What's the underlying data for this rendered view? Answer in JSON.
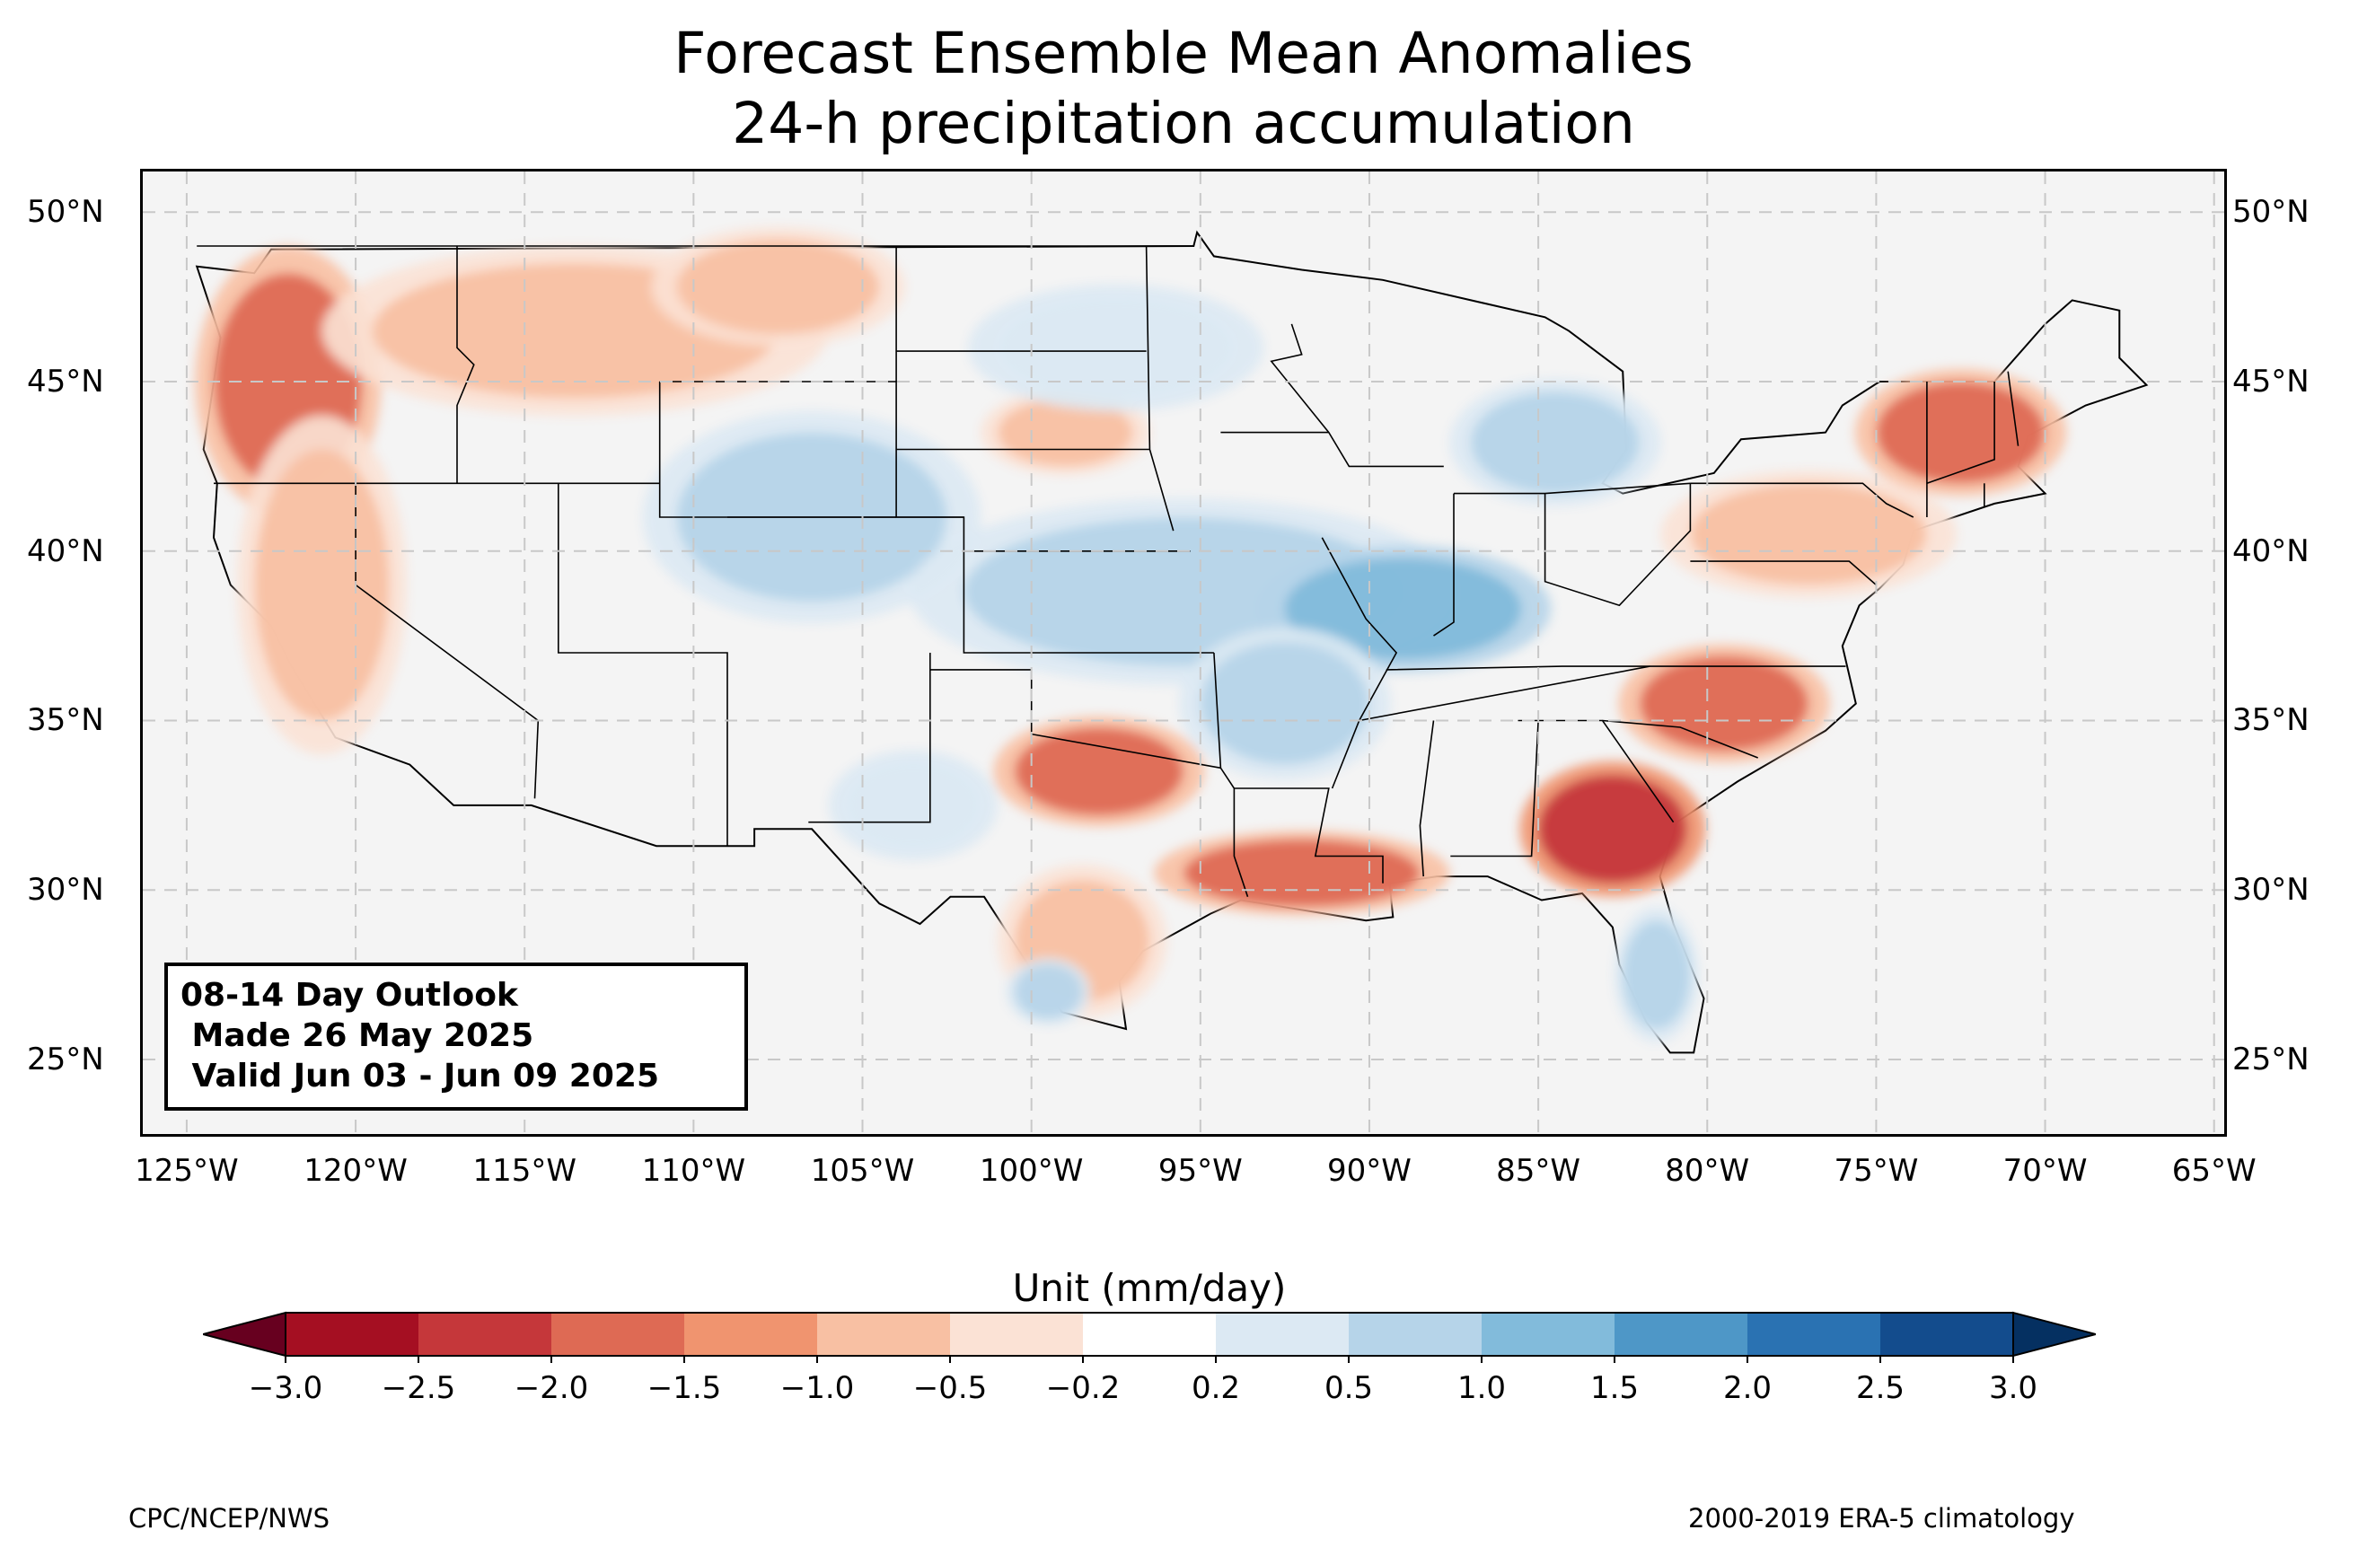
{
  "title": {
    "line1": "Forecast Ensemble Mean Anomalies",
    "line2": "24-h precipitation accumulation"
  },
  "map": {
    "extent": {
      "lon_min": -126.3,
      "lon_max": -64.7,
      "lat_min": 22.8,
      "lat_max": 51.2
    },
    "lat_ticks": [
      "50°N",
      "45°N",
      "40°N",
      "35°N",
      "30°N",
      "25°N"
    ],
    "lat_values": [
      50,
      45,
      40,
      35,
      30,
      25
    ],
    "lon_ticks": [
      "125°W",
      "120°W",
      "115°W",
      "110°W",
      "105°W",
      "100°W",
      "95°W",
      "90°W",
      "85°W",
      "80°W",
      "75°W",
      "70°W",
      "65°W"
    ],
    "lon_values": [
      -125,
      -120,
      -115,
      -110,
      -105,
      -100,
      -95,
      -90,
      -85,
      -80,
      -75,
      -70,
      -65
    ],
    "gridlines": "dashed",
    "background_color": "#f4f4f4",
    "anomaly_regions": [
      {
        "region": "Pacific Northwest",
        "center_lon": -122.0,
        "center_lat": 45.0,
        "value": -1.8,
        "rx_deg": 2.2,
        "ry_deg": 3.2
      },
      {
        "region": "Northern Rockies",
        "center_lon": -113.5,
        "center_lat": 46.5,
        "value": -1.0,
        "rx_deg": 6.0,
        "ry_deg": 2.0
      },
      {
        "region": "Eastern Montana",
        "center_lon": -107.5,
        "center_lat": 47.8,
        "value": -0.6,
        "rx_deg": 3.0,
        "ry_deg": 1.4
      },
      {
        "region": "California coast",
        "center_lon": -121.0,
        "center_lat": 39.0,
        "value": -0.6,
        "rx_deg": 2.0,
        "ry_deg": 4.0
      },
      {
        "region": "Nebraska",
        "center_lon": -99.0,
        "center_lat": 43.5,
        "value": -1.0,
        "rx_deg": 2.0,
        "ry_deg": 1.0
      },
      {
        "region": "Wyoming / Colorado",
        "center_lon": -106.5,
        "center_lat": 41.0,
        "value": 0.6,
        "rx_deg": 4.0,
        "ry_deg": 2.5
      },
      {
        "region": "Dakotas",
        "center_lon": -97.5,
        "center_lat": 46.0,
        "value": 0.4,
        "rx_deg": 3.5,
        "ry_deg": 1.5
      },
      {
        "region": "Kansas / Missouri",
        "center_lon": -95.5,
        "center_lat": 38.8,
        "value": 0.8,
        "rx_deg": 6.5,
        "ry_deg": 2.2
      },
      {
        "region": "Ohio Valley",
        "center_lon": -89.0,
        "center_lat": 38.3,
        "value": 1.2,
        "rx_deg": 3.5,
        "ry_deg": 1.5
      },
      {
        "region": "Michigan",
        "center_lon": -84.5,
        "center_lat": 43.2,
        "value": 0.6,
        "rx_deg": 2.5,
        "ry_deg": 1.5
      },
      {
        "region": "Arkansas",
        "center_lon": -92.5,
        "center_lat": 35.5,
        "value": 0.8,
        "rx_deg": 2.5,
        "ry_deg": 1.8
      },
      {
        "region": "Oklahoma",
        "center_lon": -98.0,
        "center_lat": 33.5,
        "value": -1.6,
        "rx_deg": 2.5,
        "ry_deg": 1.3
      },
      {
        "region": "Louisiana",
        "center_lon": -92.0,
        "center_lat": 30.5,
        "value": -1.8,
        "rx_deg": 3.5,
        "ry_deg": 1.0
      },
      {
        "region": "South Texas",
        "center_lon": -98.5,
        "center_lat": 28.5,
        "value": -1.0,
        "rx_deg": 2.0,
        "ry_deg": 1.8
      },
      {
        "region": "Georgia",
        "center_lon": -82.8,
        "center_lat": 31.8,
        "value": -2.1,
        "rx_deg": 2.2,
        "ry_deg": 1.6
      },
      {
        "region": "Carolinas",
        "center_lon": -79.5,
        "center_lat": 35.5,
        "value": -2.0,
        "rx_deg": 2.5,
        "ry_deg": 1.4
      },
      {
        "region": "New England",
        "center_lon": -72.5,
        "center_lat": 43.5,
        "value": -1.8,
        "rx_deg": 2.5,
        "ry_deg": 1.5
      },
      {
        "region": "Mid-Atlantic",
        "center_lon": -77.0,
        "center_lat": 40.5,
        "value": -1.0,
        "rx_deg": 3.5,
        "ry_deg": 1.5
      },
      {
        "region": "Florida",
        "center_lon": -81.5,
        "center_lat": 27.5,
        "value": 0.7,
        "rx_deg": 1.0,
        "ry_deg": 1.6
      },
      {
        "region": "West Texas",
        "center_lon": -103.5,
        "center_lat": 32.5,
        "value": 0.3,
        "rx_deg": 2.0,
        "ry_deg": 1.3
      },
      {
        "region": "South Texas coast",
        "center_lon": -99.5,
        "center_lat": 27.0,
        "value": 0.6,
        "rx_deg": 1.0,
        "ry_deg": 0.8
      }
    ]
  },
  "info_box": {
    "line1": "08-14 Day Outlook",
    "line2": " Made 26 May 2025",
    "line3": " Valid Jun 03 - Jun 09 2025"
  },
  "colorbar": {
    "label": "Unit (mm/day)",
    "boundaries": [
      -3.0,
      -2.5,
      -2.0,
      -1.5,
      -1.0,
      -0.5,
      -0.2,
      0.2,
      0.5,
      1.0,
      1.5,
      2.0,
      2.5,
      3.0
    ],
    "tick_labels": [
      "−3.0",
      "−2.5",
      "−2.0",
      "−1.5",
      "−1.0",
      "−0.5",
      "−0.2",
      "0.2",
      "0.5",
      "1.0",
      "1.5",
      "2.0",
      "2.5",
      "3.0"
    ],
    "colors": [
      "#a50f22",
      "#c5373a",
      "#de6a54",
      "#f0946f",
      "#f8c0a3",
      "#fbe2d5",
      "#ffffff",
      "#dce9f3",
      "#b6d4e9",
      "#82bbdb",
      "#4e97c7",
      "#2a72b2",
      "#134c8d"
    ],
    "extend_low_color": "#67001f",
    "extend_high_color": "#053061"
  },
  "credits": {
    "left": "CPC/NCEP/NWS",
    "right": "2000-2019 ERA-5 climatology"
  }
}
